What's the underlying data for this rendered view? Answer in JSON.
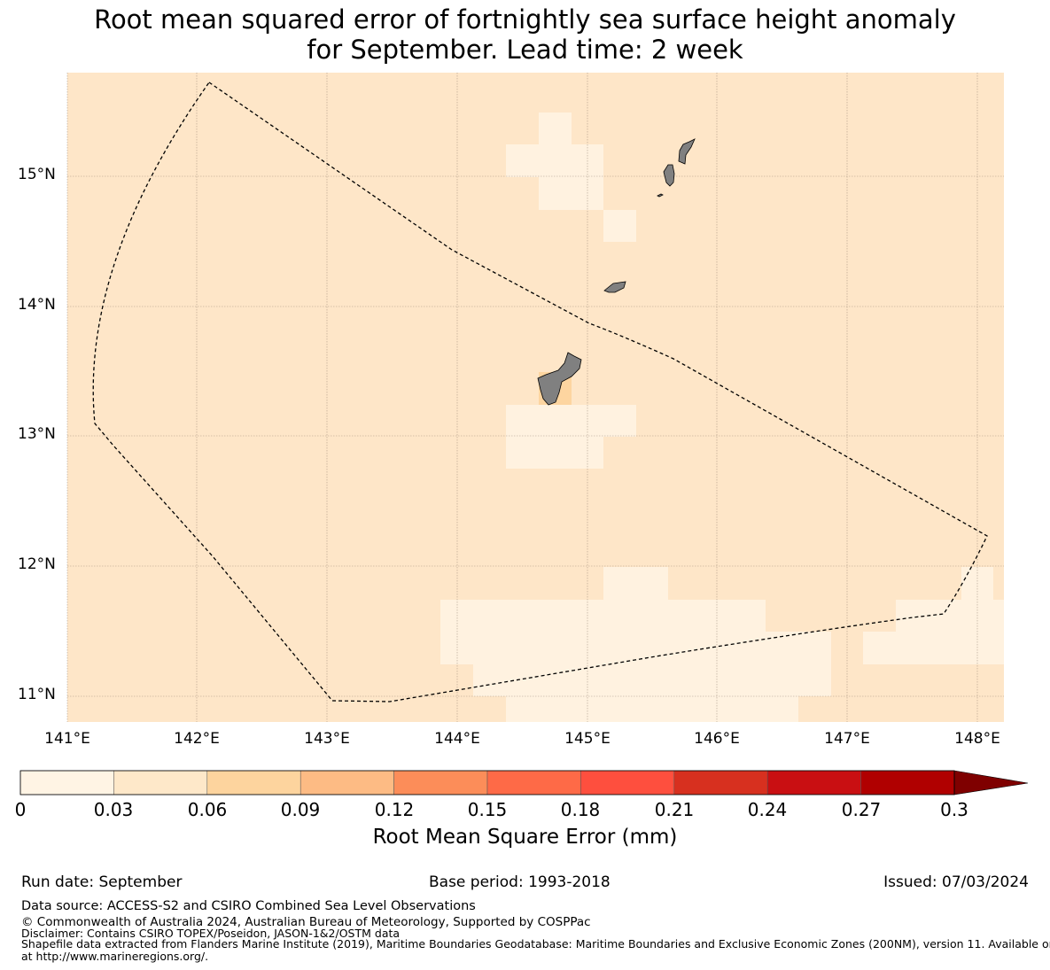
{
  "title": {
    "line1": "Root mean squared error of fortnightly sea surface height anomaly",
    "line2": "for September. Lead time: 2 week"
  },
  "map": {
    "lat_labels": [
      "15°N",
      "14°N",
      "13°N",
      "12°N",
      "11°N"
    ],
    "lon_labels": [
      "141°E",
      "142°E",
      "143°E",
      "144°E",
      "145°E",
      "146°E",
      "147°E",
      "148°E"
    ],
    "background_color": "#fee6c8",
    "light_cell_color": "#fff2e0",
    "dark_cell_color": "#fdd5a0",
    "land_color": "#808080"
  },
  "colorbar": {
    "ticks": [
      "0",
      "0.03",
      "0.06",
      "0.09",
      "0.12",
      "0.15",
      "0.18",
      "0.21",
      "0.24",
      "0.27",
      "0.3"
    ],
    "colors": [
      "#fff4e4",
      "#fee8c9",
      "#fdd49e",
      "#fdbb84",
      "#fc8d59",
      "#fe6a47",
      "#fe4f3e",
      "#d7301f",
      "#c90f12",
      "#b00000",
      "#7f0000"
    ],
    "label": "Root Mean Square Error (mm)"
  },
  "footer": {
    "run_date": "Run date: September",
    "base_period": "Base period: 1993-2018",
    "issued": "Issued: 07/03/2024",
    "data_source": "Data source: ACCESS-S2 and CSIRO Combined Sea Level Observations",
    "copyright": "© Commonwealth of Australia 2024, Australian Bureau of Meteorology, Supported by COSPPac",
    "disclaimer": "Disclaimer: Contains CSIRO TOPEX/Poseidon, JASON-1&2/OSTM data",
    "shapefile_line1": "Shapefile data extracted from Flanders Marine Institute (2019), Maritime Boundaries Geodatabase: Maritime Boundaries and Exclusive Economic Zones (200NM), version 11. Available online",
    "shapefile_line2": "at http://www.marineregions.org/."
  }
}
